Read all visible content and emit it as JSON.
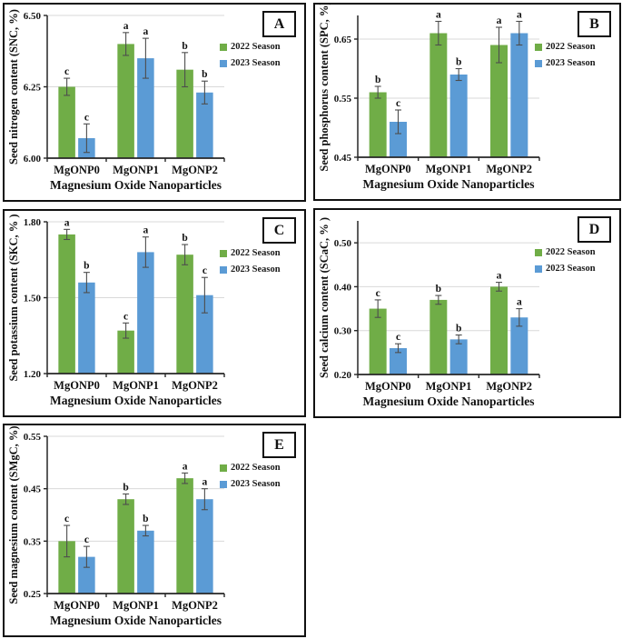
{
  "figure": {
    "background": "#ffffff",
    "axis_color": "#262626",
    "gridline_color": "#d9d9d9",
    "error_bar_color": "#4d4d4d",
    "series_colors": [
      "#70AD47",
      "#5B9BD5"
    ],
    "legend_labels": [
      "2022 Season",
      "2023 Season"
    ],
    "categories": [
      "MgONP0",
      "MgONP1",
      "MgONP2"
    ],
    "xlabel": "Magnesium Oxide Nanoparticles"
  },
  "chart_data": [
    {
      "type": "bar",
      "panel": "A",
      "title": "",
      "ylabel": "Seed nitrogen content (SNC, %)",
      "xlabel": "Magnesium Oxide Nanoparticles",
      "categories": [
        "MgONP0",
        "MgONP1",
        "MgONP2"
      ],
      "ylim": [
        6.0,
        6.5
      ],
      "ytick_values": [
        6.0,
        6.25,
        6.5
      ],
      "ytick_labels": [
        "6.00",
        "6.25",
        "6.50"
      ],
      "grid": true,
      "legend_position": "right",
      "series": [
        {
          "name": "2022 Season",
          "color": "#70AD47",
          "values": [
            6.25,
            6.4,
            6.31
          ],
          "errors": [
            0.03,
            0.04,
            0.06
          ],
          "letters": [
            "c",
            "a",
            "b"
          ]
        },
        {
          "name": "2023 Season",
          "color": "#5B9BD5",
          "values": [
            6.07,
            6.35,
            6.23
          ],
          "errors": [
            0.05,
            0.07,
            0.04
          ],
          "letters": [
            "c",
            "a",
            "b"
          ]
        }
      ]
    },
    {
      "type": "bar",
      "panel": "B",
      "title": "",
      "ylabel": "Seed phosphorus content (SPC, %)",
      "xlabel": "Magnesium Oxide Nanoparticles",
      "categories": [
        "MgONP0",
        "MgONP1",
        "MgONP2"
      ],
      "ylim": [
        0.45,
        0.69
      ],
      "ytick_values": [
        0.45,
        0.55,
        0.65
      ],
      "ytick_labels": [
        "0.45",
        "0.55",
        "0.65"
      ],
      "grid": true,
      "legend_position": "right",
      "series": [
        {
          "name": "2022 Season",
          "color": "#70AD47",
          "values": [
            0.56,
            0.66,
            0.64
          ],
          "errors": [
            0.01,
            0.02,
            0.03
          ],
          "letters": [
            "b",
            "a",
            "a"
          ]
        },
        {
          "name": "2023 Season",
          "color": "#5B9BD5",
          "values": [
            0.51,
            0.59,
            0.66
          ],
          "errors": [
            0.02,
            0.01,
            0.02
          ],
          "letters": [
            "c",
            "b",
            "a"
          ]
        }
      ]
    },
    {
      "type": "bar",
      "panel": "C",
      "title": "",
      "ylabel": "Seed potassium content (SKC, % )",
      "xlabel": "Magnesium Oxide Nanoparticles",
      "categories": [
        "MgONP0",
        "MgONP1",
        "MgONP2"
      ],
      "ylim": [
        1.2,
        1.8
      ],
      "ytick_values": [
        1.2,
        1.5,
        1.8
      ],
      "ytick_labels": [
        "1.20",
        "1.50",
        "1.80"
      ],
      "grid": true,
      "legend_position": "right",
      "series": [
        {
          "name": "2022 Season",
          "color": "#70AD47",
          "values": [
            1.75,
            1.37,
            1.67
          ],
          "errors": [
            0.02,
            0.03,
            0.04
          ],
          "letters": [
            "a",
            "c",
            "b"
          ]
        },
        {
          "name": "2023 Season",
          "color": "#5B9BD5",
          "values": [
            1.56,
            1.68,
            1.51
          ],
          "errors": [
            0.04,
            0.06,
            0.07
          ],
          "letters": [
            "b",
            "a",
            "c"
          ]
        }
      ]
    },
    {
      "type": "bar",
      "panel": "D",
      "title": "",
      "ylabel": "Seed calcium content (SCaC, % )",
      "xlabel": "Magnesium Oxide Nanoparticles",
      "categories": [
        "MgONP0",
        "MgONP1",
        "MgONP2"
      ],
      "ylim": [
        0.2,
        0.55
      ],
      "ytick_values": [
        0.2,
        0.3,
        0.4,
        0.5
      ],
      "ytick_labels": [
        "0.20",
        "0.30",
        "0.40",
        "0.50"
      ],
      "grid": true,
      "legend_position": "right",
      "series": [
        {
          "name": "2022 Season",
          "color": "#70AD47",
          "values": [
            0.35,
            0.37,
            0.4
          ],
          "errors": [
            0.02,
            0.01,
            0.01
          ],
          "letters": [
            "c",
            "b",
            "a"
          ]
        },
        {
          "name": "2023 Season",
          "color": "#5B9BD5",
          "values": [
            0.26,
            0.28,
            0.33
          ],
          "errors": [
            0.01,
            0.01,
            0.02
          ],
          "letters": [
            "c",
            "b",
            "a"
          ]
        }
      ]
    },
    {
      "type": "bar",
      "panel": "E",
      "title": "",
      "ylabel": "Seed magnesium content (SMgC, %)",
      "xlabel": "Magnesium Oxide Nanoparticles",
      "categories": [
        "MgONP0",
        "MgONP1",
        "MgONP2"
      ],
      "ylim": [
        0.25,
        0.55
      ],
      "ytick_values": [
        0.25,
        0.35,
        0.45,
        0.55
      ],
      "ytick_labels": [
        "0.25",
        "0.35",
        "0.45",
        "0.55"
      ],
      "grid": true,
      "legend_position": "right",
      "series": [
        {
          "name": "2022 Season",
          "color": "#70AD47",
          "values": [
            0.35,
            0.43,
            0.47
          ],
          "errors": [
            0.03,
            0.01,
            0.01
          ],
          "letters": [
            "c",
            "b",
            "a"
          ]
        },
        {
          "name": "2023 Season",
          "color": "#5B9BD5",
          "values": [
            0.32,
            0.37,
            0.43
          ],
          "errors": [
            0.02,
            0.01,
            0.02
          ],
          "letters": [
            "c",
            "b",
            "a"
          ]
        }
      ]
    }
  ]
}
